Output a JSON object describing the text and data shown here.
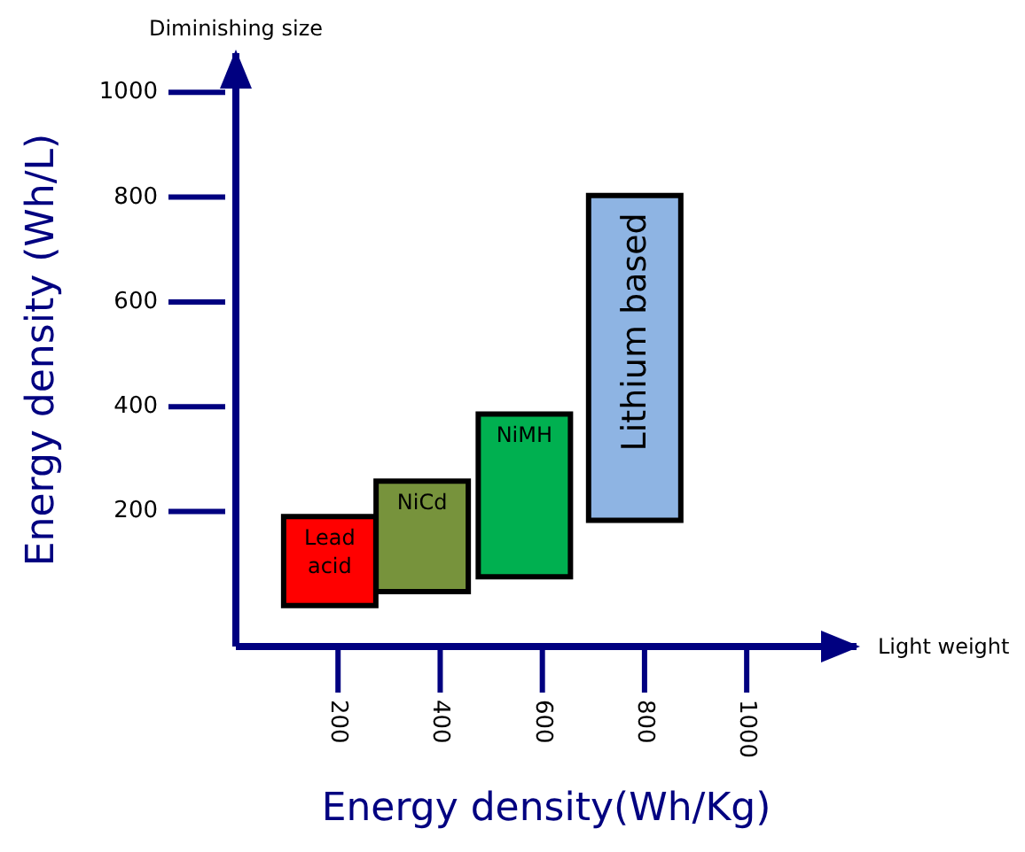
{
  "chart_data": {
    "type": "bar",
    "xlabel": "Energy density(Wh/Kg)",
    "ylabel": "Energy density (Wh/L)",
    "annotations": [
      "Diminishing size",
      "Light weight"
    ],
    "xlim": [
      0,
      1215
    ],
    "xticks": [
      200,
      400,
      600,
      800,
      1000
    ],
    "ylim": [
      -58,
      1075
    ],
    "yticks": [
      200,
      400,
      600,
      800,
      1000
    ],
    "series": [
      {
        "name": "Lead acid",
        "color": "#ff0000",
        "x": [
          184
        ],
        "base": [
          20
        ],
        "values": [
          170
        ]
      },
      {
        "name": "NiCd",
        "color": "#77933c",
        "x": [
          365
        ],
        "base": [
          47
        ],
        "values": [
          211
        ]
      },
      {
        "name": "NiMH",
        "color": "#00b050",
        "x": [
          565
        ],
        "base": [
          75
        ],
        "values": [
          311
        ]
      },
      {
        "name": "Lithium based",
        "color": "#8eb4e3",
        "x": [
          781
        ],
        "base": [
          183
        ],
        "values": [
          620
        ]
      }
    ]
  }
}
